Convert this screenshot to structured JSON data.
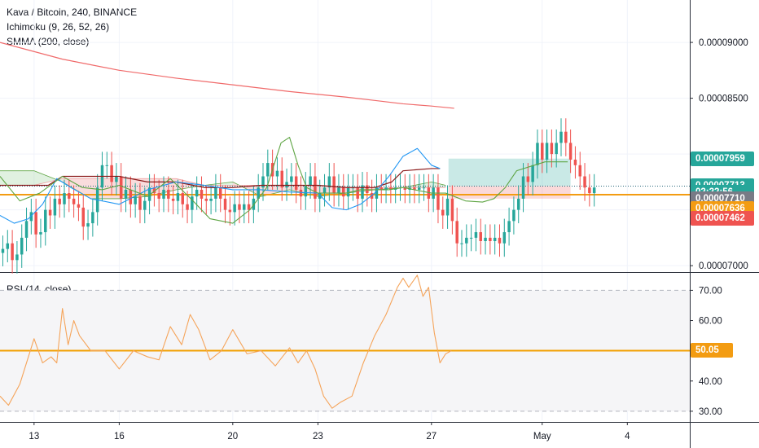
{
  "main_legend": {
    "symbol": "Kava / Bitcoin, 240, BINANCE",
    "indicator1": "Ichimoku (9, 26, 52, 26)",
    "indicator2": "SMMA (200, close)"
  },
  "rsi_legend": "RSI (14, close)",
  "colors": {
    "bull": "#26a69a",
    "bear": "#ef5350",
    "price_line": "#f39c12",
    "smma": "#f06a6a",
    "rsi": "#f5a45a",
    "rsi_mid": "#f2a000",
    "tenkan": "#2196f3",
    "kijun": "#8b1a1a",
    "chikou": "#5fa544",
    "cloud_green": "#a5d6a7",
    "cloud_red": "#ef9a9a"
  },
  "price_badges": [
    {
      "label": "0.00007959",
      "value": 7.959e-05,
      "color": "#26a69a"
    },
    {
      "label": "0.00007713",
      "value": 7.713e-05,
      "color": "#26a69a"
    },
    {
      "label": "02:22:56",
      "value": 7.655e-05,
      "color": "#26a69a",
      "countdown": true
    },
    {
      "label": "0.00007710",
      "value": 7.603e-05,
      "color": "#787b86"
    },
    {
      "label": "0.00007636",
      "value": 7.513e-05,
      "color": "#f39c12"
    },
    {
      "label": "0.00007462",
      "value": 7.423e-05,
      "color": "#ef5350"
    }
  ],
  "rsi_badge": {
    "label": "50.05",
    "value": 50.05,
    "color": "#f39c12"
  },
  "chart_data": {
    "type": "line",
    "title": "Kava / Bitcoin, 240, BINANCE",
    "price_axis": {
      "range": [
        6.95e-05,
        9.38e-05
      ],
      "ticks": [
        {
          "label": "0.00009000",
          "value": 9e-05
        },
        {
          "label": "0.00008500",
          "value": 8.5e-05
        },
        {
          "label": "0.00007000",
          "value": 7e-05
        }
      ]
    },
    "rsi_axis": {
      "range": [
        27,
        75.5
      ],
      "ticks": [
        {
          "label": "70.00",
          "value": 70
        },
        {
          "label": "60.00",
          "value": 60
        },
        {
          "label": "40.00",
          "value": 40
        },
        {
          "label": "30.00",
          "value": 30
        }
      ],
      "band": [
        30,
        70
      ]
    },
    "time_axis": {
      "range": [
        11.8,
        36.1
      ],
      "ticks": [
        {
          "label": "13",
          "t": 13
        },
        {
          "label": "16",
          "t": 16
        },
        {
          "label": "20",
          "t": 20
        },
        {
          "label": "23",
          "t": 23
        },
        {
          "label": "27",
          "t": 27
        },
        {
          "label": "May",
          "t": 30.9
        },
        {
          "label": "4",
          "t": 33.9
        }
      ]
    },
    "last_price_line": 7.713e-05,
    "avg_price_line": 7.636e-05,
    "position": {
      "t_start": 27.6,
      "t_end": 31.9,
      "entry": 7.713e-05,
      "target": 7.959e-05,
      "stop": 7.6e-05
    },
    "smma": {
      "t": [
        11.8,
        14,
        16,
        18,
        20,
        22,
        24,
        25,
        26,
        27,
        27.8
      ],
      "v": [
        9e-05,
        8.85e-05,
        8.75e-05,
        8.68e-05,
        8.62e-05,
        8.56e-05,
        8.51e-05,
        8.48e-05,
        8.45e-05,
        8.43e-05,
        8.41e-05
      ]
    },
    "candles": {
      "t_start": 11.9,
      "t_step": 0.16667,
      "close": [
        7.15e-05,
        7.2e-05,
        7.05e-05,
        7.1e-05,
        7.25e-05,
        7.4e-05,
        7.48e-05,
        7.28e-05,
        7.3e-05,
        7.5e-05,
        7.45e-05,
        7.6e-05,
        7.55e-05,
        7.65e-05,
        7.6e-05,
        7.55e-05,
        7.52e-05,
        7.35e-05,
        7.38e-05,
        7.48e-05,
        7.7e-05,
        7.9e-05,
        7.9e-05,
        7.75e-05,
        7.8e-05,
        7.6e-05,
        7.68e-05,
        7.55e-05,
        7.62e-05,
        7.5e-05,
        7.58e-05,
        7.7e-05,
        7.65e-05,
        7.6e-05,
        7.68e-05,
        7.6e-05,
        7.58e-05,
        7.65e-05,
        7.55e-05,
        7.5e-05,
        7.62e-05,
        7.68e-05,
        7.6e-05,
        7.58e-05,
        7.6e-05,
        7.7e-05,
        7.6e-05,
        7.5e-05,
        7.48e-05,
        7.55e-05,
        7.5e-05,
        7.55e-05,
        7.5e-05,
        7.6e-05,
        7.7e-05,
        7.8e-05,
        7.92e-05,
        7.8e-05,
        7.85e-05,
        7.7e-05,
        7.75e-05,
        7.8e-05,
        7.68e-05,
        7.62e-05,
        7.72e-05,
        7.8e-05,
        7.6e-05,
        7.65e-05,
        7.7e-05,
        7.8e-05,
        7.65e-05,
        7.7e-05,
        7.62e-05,
        7.7e-05,
        7.7e-05,
        7.6e-05,
        7.72e-05,
        7.65e-05,
        7.6e-05,
        7.7e-05,
        7.68e-05,
        7.7e-05,
        7.68e-05,
        7.7e-05,
        7.7e-05,
        7.68e-05,
        7.7e-05,
        7.68e-05,
        7.7e-05,
        7.7e-05,
        7.6e-05,
        7.7e-05,
        7.5e-05,
        7.45e-05,
        7.6e-05,
        7.4e-05,
        7.2e-05,
        7.2e-05,
        7.25e-05,
        7.25e-05,
        7.3e-05,
        7.22e-05,
        7.25e-05,
        7.22e-05,
        7.25e-05,
        7.2e-05,
        7.3e-05,
        7.4e-05,
        7.5e-05,
        7.6e-05,
        7.8e-05,
        7.75e-05,
        7.9e-05,
        8.1e-05,
        7.95e-05,
        8.1e-05,
        8e-05,
        8.1e-05,
        8.2e-05,
        8.1e-05,
        7.95e-05,
        7.9e-05,
        7.8e-05,
        7.7e-05,
        7.65e-05,
        7.7e-05
      ]
    },
    "ichimoku": {
      "tenkan": {
        "t": [
          11.8,
          12.3,
          12.8,
          13.3,
          13.8,
          14.3,
          15,
          16,
          17,
          18,
          19,
          20,
          21,
          22,
          23,
          23.5,
          24,
          24.5,
          25,
          25.5,
          26,
          26.5,
          27,
          27.3
        ],
        "v": [
          7.45e-05,
          7.38e-05,
          7.42e-05,
          7.55e-05,
          7.78e-05,
          7.7e-05,
          7.6e-05,
          7.55e-05,
          7.68e-05,
          7.75e-05,
          7.72e-05,
          7.68e-05,
          7.68e-05,
          7.66e-05,
          7.65e-05,
          7.52e-05,
          7.5e-05,
          7.55e-05,
          7.65e-05,
          7.8e-05,
          7.98e-05,
          8.05e-05,
          7.9e-05,
          7.87e-05
        ]
      },
      "kijun": {
        "t": [
          11.8,
          12.5,
          13.5,
          14,
          15,
          16,
          17,
          18,
          19,
          20,
          21,
          22,
          23,
          24,
          25,
          25.6,
          26,
          27,
          27.3
        ],
        "v": [
          7.72e-05,
          7.72e-05,
          7.72e-05,
          7.8e-05,
          7.8e-05,
          7.8e-05,
          7.75e-05,
          7.75e-05,
          7.7e-05,
          7.7e-05,
          7.72e-05,
          7.72e-05,
          7.72e-05,
          7.7e-05,
          7.7e-05,
          7.75e-05,
          7.85e-05,
          7.87e-05,
          7.87e-05
        ]
      },
      "chikou": {
        "t": [
          11.8,
          12.5,
          13.2,
          14,
          14.7,
          15.4,
          16,
          17,
          17.8,
          18.6,
          19.2,
          20,
          20.6,
          21.2,
          21.7,
          22,
          22.3,
          22.6,
          23,
          23.5,
          24,
          24.5,
          25,
          25.5,
          26,
          27,
          27.5,
          28.2,
          28.8,
          29.2,
          29.6,
          30,
          31,
          31.8
        ],
        "v": [
          7.8e-05,
          7.58e-05,
          7.65e-05,
          7.8e-05,
          7.7e-05,
          7.68e-05,
          7.72e-05,
          7.62e-05,
          7.78e-05,
          7.58e-05,
          7.42e-05,
          7.38e-05,
          7.5e-05,
          7.7e-05,
          8.1e-05,
          8.15e-05,
          7.9e-05,
          7.7e-05,
          7.65e-05,
          7.65e-05,
          7.65e-05,
          7.68e-05,
          7.68e-05,
          7.68e-05,
          7.7e-05,
          7.65e-05,
          7.65e-05,
          7.58e-05,
          7.57e-05,
          7.6e-05,
          7.7e-05,
          7.85e-05,
          7.93e-05,
          7.93e-05
        ]
      },
      "span_a": {
        "t": [
          11.8,
          13,
          14,
          15,
          16,
          17,
          18,
          19,
          20,
          21,
          22,
          23,
          24,
          25,
          26,
          27,
          27.5
        ],
        "v": [
          7.85e-05,
          7.85e-05,
          7.75e-05,
          7.6e-05,
          7.6e-05,
          7.62e-05,
          7.68e-05,
          7.72e-05,
          7.75e-05,
          7.62e-05,
          7.68e-05,
          7.62e-05,
          7.65e-05,
          7.68e-05,
          7.7e-05,
          7.75e-05,
          7.72e-05
        ]
      },
      "span_b": {
        "t": [
          11.8,
          13,
          14,
          15,
          16,
          17,
          18,
          19,
          20,
          21,
          22,
          23,
          24,
          25,
          26,
          27,
          27.5
        ],
        "v": [
          7.72e-05,
          7.72e-05,
          7.78e-05,
          7.78e-05,
          7.78e-05,
          7.78e-05,
          7.78e-05,
          7.72e-05,
          7.72e-05,
          7.72e-05,
          7.72e-05,
          7.72e-05,
          7.7e-05,
          7.7e-05,
          7.7e-05,
          7.7e-05,
          7.7e-05
        ]
      }
    },
    "rsi": {
      "t": [
        11.8,
        12.1,
        12.5,
        13,
        13.3,
        13.6,
        13.8,
        14,
        14.2,
        14.4,
        14.6,
        15,
        15.5,
        16,
        16.5,
        17,
        17.4,
        17.8,
        18.2,
        18.5,
        18.8,
        19.2,
        19.6,
        20,
        20.5,
        21,
        21.5,
        22,
        22.3,
        22.6,
        22.9,
        23.2,
        23.5,
        23.8,
        24.2,
        24.6,
        25,
        25.4,
        25.8,
        26,
        26.2,
        26.5,
        26.7,
        26.9,
        27.1,
        27.3,
        27.5,
        27.7
      ],
      "v": [
        35,
        32,
        39,
        54,
        46,
        48,
        46,
        64,
        52,
        60,
        55,
        50,
        50,
        44,
        50,
        48,
        47,
        58,
        52,
        62,
        57,
        47,
        50,
        57,
        49,
        50,
        45,
        51,
        46,
        50,
        44,
        35,
        31,
        33,
        35,
        46,
        55,
        62,
        71,
        74,
        71,
        75,
        68,
        71,
        56,
        46,
        49,
        50
      ]
    }
  }
}
